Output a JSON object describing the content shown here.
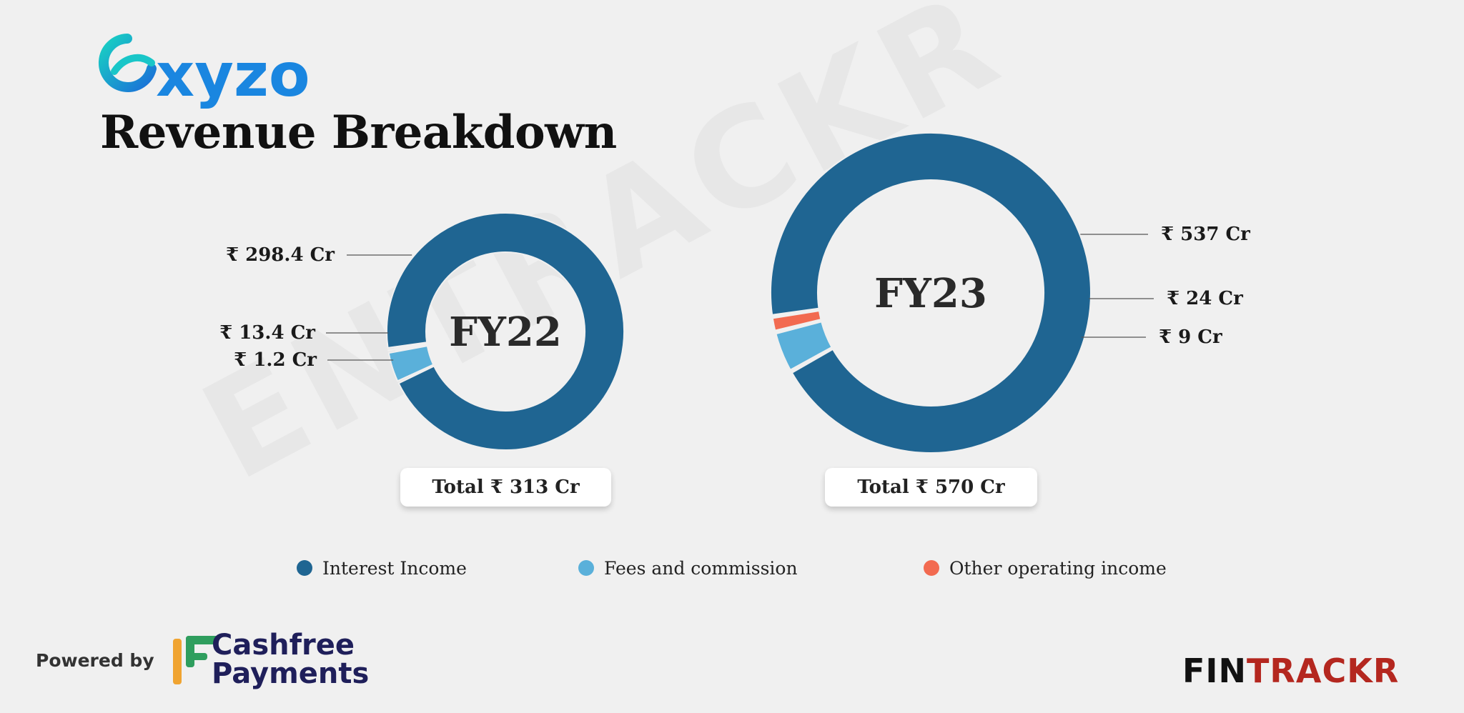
{
  "brand": {
    "name": "Oxyzo",
    "accent": "#1aa6e0"
  },
  "title": "Revenue Breakdown",
  "chart_data": [
    {
      "type": "pie",
      "center_label": "FY22",
      "categories": [
        "Interest Income",
        "Fees and commission",
        "Other operating income"
      ],
      "values": [
        298.4,
        13.4,
        1.2
      ],
      "value_labels": [
        "₹ 298.4 Cr",
        "₹ 13.4 Cr",
        "₹ 1.2 Cr"
      ],
      "total_label": "Total ₹ 313 Cr"
    },
    {
      "type": "pie",
      "center_label": "FY23",
      "categories": [
        "Interest Income",
        "Fees and commission",
        "Other operating income"
      ],
      "values": [
        537,
        24,
        9
      ],
      "value_labels": [
        "₹ 537 Cr",
        "₹ 24 Cr",
        "₹ 9 Cr"
      ],
      "total_label": "Total ₹ 570 Cr"
    }
  ],
  "legend": [
    {
      "label": "Interest Income",
      "color": "#1f6592"
    },
    {
      "label": "Fees and commission",
      "color": "#5ab0da"
    },
    {
      "label": "Other operating income",
      "color": "#f26a50"
    }
  ],
  "footer": {
    "powered_by": "Powered by",
    "partner_line1": "Cashfree",
    "partner_line2": "Payments",
    "logo_part1": "FIN",
    "logo_part2": "TRACKR"
  },
  "watermark": "ENTRACKR"
}
